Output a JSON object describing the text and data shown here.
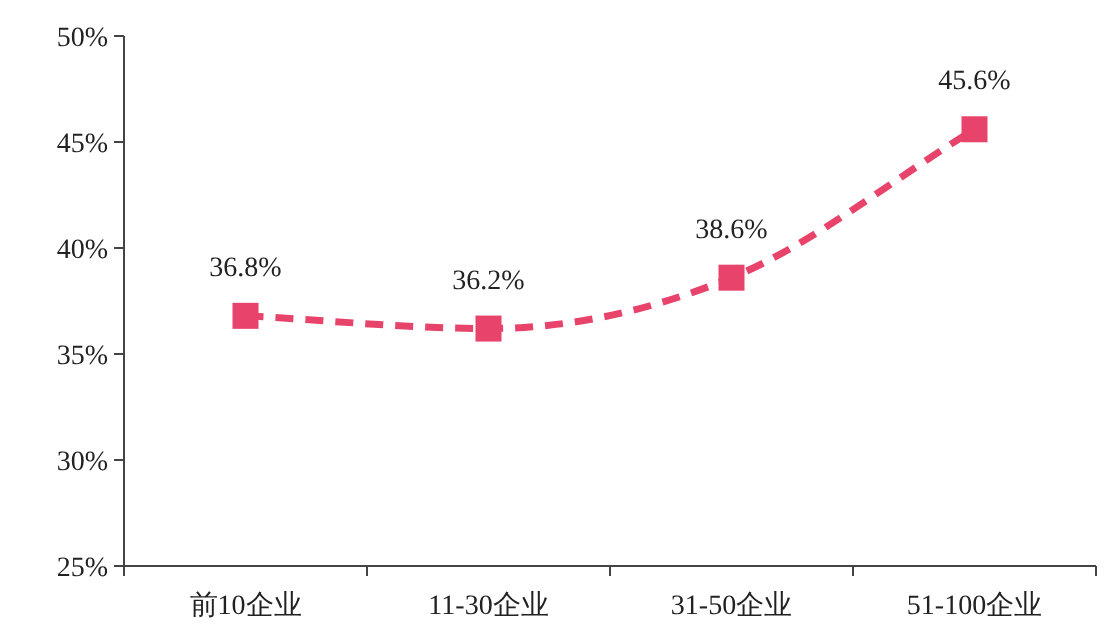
{
  "chart_data": {
    "type": "line",
    "categories": [
      "前10企业",
      "11-30企业",
      "31-50企业",
      "51-100企业"
    ],
    "series": [
      {
        "color": "#e8436a",
        "values": [
          36.8,
          36.2,
          38.6,
          45.6
        ],
        "value_labels": [
          "36.8%",
          "36.2%",
          "38.6%",
          "45.6%"
        ]
      }
    ],
    "ylim": [
      25,
      50
    ],
    "yticks": [
      {
        "value": 25,
        "label": "25%"
      },
      {
        "value": 30,
        "label": "30%"
      },
      {
        "value": 35,
        "label": "35%"
      },
      {
        "value": 40,
        "label": "40%"
      },
      {
        "value": 45,
        "label": "45%"
      },
      {
        "value": 50,
        "label": "50%"
      }
    ],
    "marker": "square",
    "line_style": "dashed",
    "grid": false
  }
}
